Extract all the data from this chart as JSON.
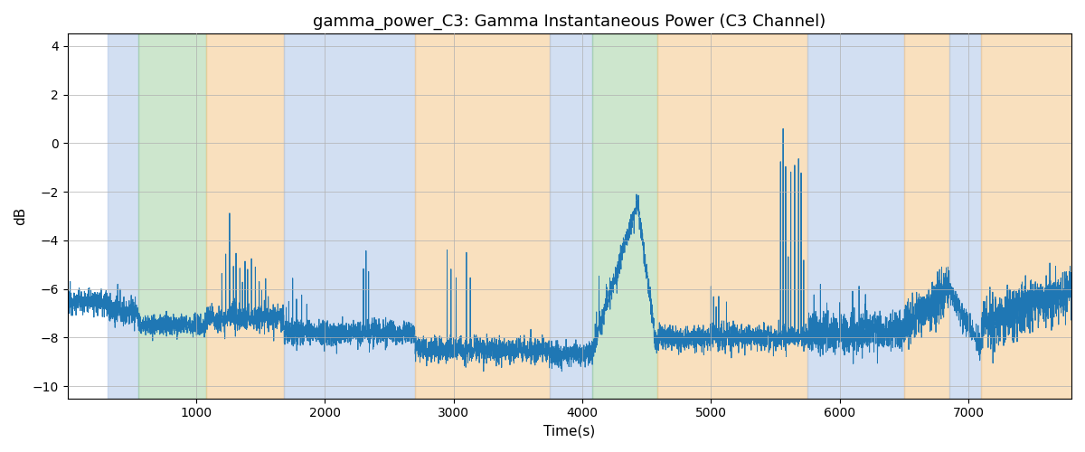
{
  "title": "gamma_power_C3: Gamma Instantaneous Power (C3 Channel)",
  "xlabel": "Time(s)",
  "ylabel": "dB",
  "ylim": [
    -10.5,
    4.5
  ],
  "xlim": [
    0,
    7800
  ],
  "line_color": "#1f77b4",
  "line_width": 0.7,
  "bg_color": "#ffffff",
  "grid_color": "#b0b0b0",
  "title_fontsize": 13,
  "label_fontsize": 11,
  "bands": [
    {
      "xmin": 310,
      "xmax": 550,
      "color": "#aec6e8",
      "alpha": 0.55
    },
    {
      "xmin": 550,
      "xmax": 1080,
      "color": "#90c990",
      "alpha": 0.45
    },
    {
      "xmin": 1080,
      "xmax": 1680,
      "color": "#f5c78a",
      "alpha": 0.55
    },
    {
      "xmin": 1680,
      "xmax": 2700,
      "color": "#aec6e8",
      "alpha": 0.55
    },
    {
      "xmin": 2700,
      "xmax": 3750,
      "color": "#f5c78a",
      "alpha": 0.55
    },
    {
      "xmin": 3750,
      "xmax": 4080,
      "color": "#aec6e8",
      "alpha": 0.55
    },
    {
      "xmin": 4080,
      "xmax": 4580,
      "color": "#90c990",
      "alpha": 0.45
    },
    {
      "xmin": 4580,
      "xmax": 5750,
      "color": "#f5c78a",
      "alpha": 0.55
    },
    {
      "xmin": 5750,
      "xmax": 6500,
      "color": "#aec6e8",
      "alpha": 0.55
    },
    {
      "xmin": 6500,
      "xmax": 6850,
      "color": "#f5c78a",
      "alpha": 0.55
    },
    {
      "xmin": 6850,
      "xmax": 7100,
      "color": "#aec6e8",
      "alpha": 0.55
    },
    {
      "xmin": 7100,
      "xmax": 7800,
      "color": "#f5c78a",
      "alpha": 0.55
    }
  ]
}
